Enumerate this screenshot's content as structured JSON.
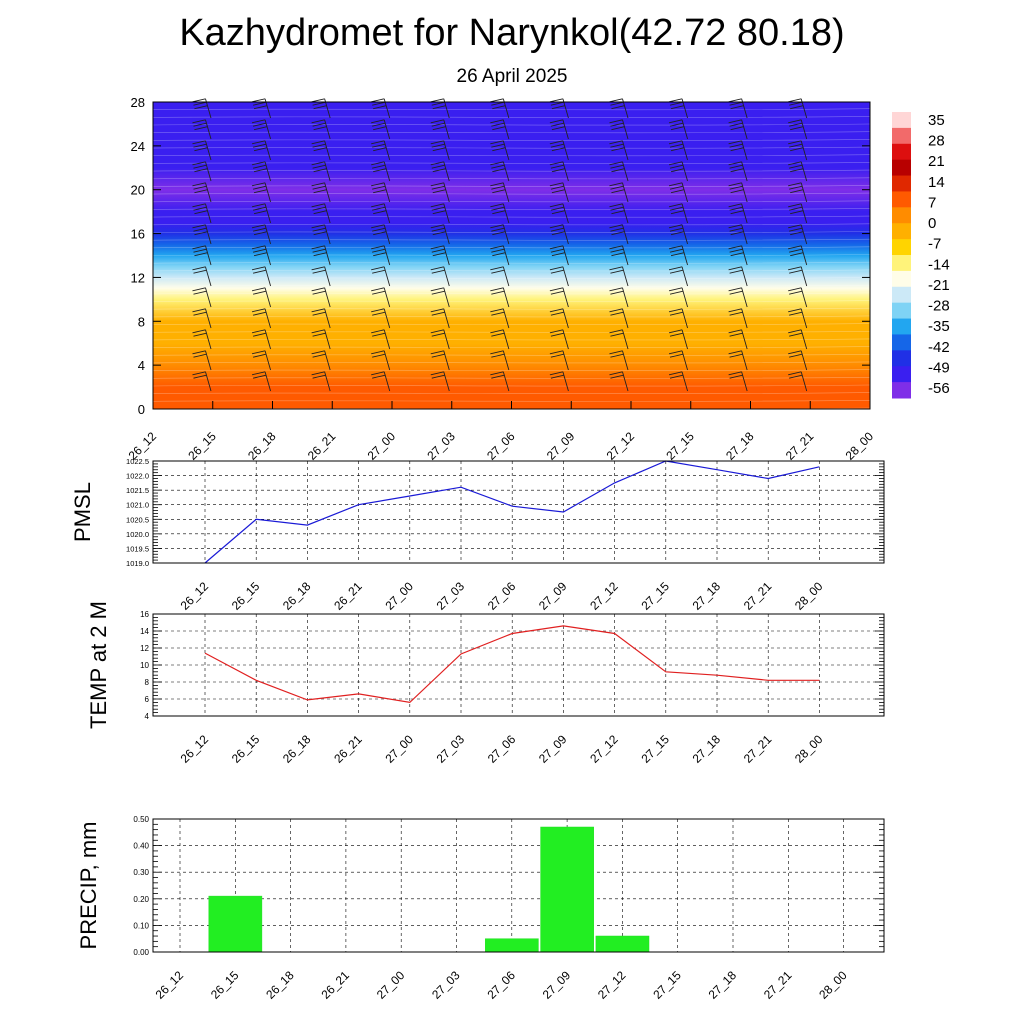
{
  "title": "Kazhydromet for Narynkol(42.72 80.18)",
  "subtitle": "26 April 2025",
  "colors": {
    "pmsl_line": "#1a1ad6",
    "temp_line": "#e02020",
    "precip_bar": "#22ee22",
    "precip_bar_edge": "#22dd22"
  },
  "chart_data": [
    {
      "type": "heatmap",
      "name_hint": "upper-air temperature cross-section",
      "x_ticks": [
        "26_12",
        "26_15",
        "26_18",
        "26_21",
        "27_00",
        "27_03",
        "27_06",
        "27_09",
        "27_12",
        "27_15",
        "27_18",
        "27_21",
        "28_00"
      ],
      "y_ticks": [
        "0",
        "4",
        "8",
        "12",
        "16",
        "20",
        "24",
        "28"
      ],
      "ylim": [
        0,
        28
      ],
      "colorbar_labels": [
        "35",
        "28",
        "21",
        "14",
        "7",
        "0",
        "-7",
        "-14",
        "-21",
        "-28",
        "-35",
        "-42",
        "-49",
        "-56"
      ],
      "color_scale": [
        "#ffd6d6",
        "#f26a6a",
        "#dd0f0f",
        "#b80000",
        "#e02800",
        "#ff5a00",
        "#ff8c00",
        "#ffb000",
        "#ffd400",
        "#fff37a",
        "#fffde8",
        "#cce9f7",
        "#7fd3f5",
        "#22a6f0",
        "#1566e8",
        "#2030e6",
        "#3a1ff0",
        "#7f2ee8"
      ],
      "level_temps": [
        {
          "h": 0,
          "t": 10
        },
        {
          "h": 2,
          "t": 6
        },
        {
          "h": 4,
          "t": 2
        },
        {
          "h": 6,
          "t": -2
        },
        {
          "h": 8,
          "t": -6
        },
        {
          "h": 10,
          "t": -13
        },
        {
          "h": 11,
          "t": -20
        },
        {
          "h": 12,
          "t": -28
        },
        {
          "h": 13,
          "t": -36
        },
        {
          "h": 14,
          "t": -42
        },
        {
          "h": 15,
          "t": -48
        },
        {
          "h": 16,
          "t": -53
        },
        {
          "h": 17,
          "t": -57
        },
        {
          "h": 18,
          "t": -60
        },
        {
          "h": 20,
          "t": -61
        },
        {
          "h": 22,
          "t": -58
        },
        {
          "h": 24,
          "t": -55
        },
        {
          "h": 28,
          "t": -55
        }
      ]
    },
    {
      "type": "line",
      "ylabel": "PMSL",
      "x": [
        "26_12",
        "26_15",
        "26_18",
        "26_21",
        "27_00",
        "27_03",
        "27_06",
        "27_09",
        "27_12",
        "27_15",
        "27_18",
        "27_21",
        "28_00"
      ],
      "values": [
        1019.0,
        1020.5,
        1020.3,
        1021.0,
        1021.3,
        1021.6,
        1020.95,
        1020.75,
        1021.75,
        1022.5,
        1022.2,
        1021.9,
        1022.3
      ],
      "ylim": [
        1019.0,
        1022.5
      ],
      "y_ticks": [
        "1019.0",
        "1019.5",
        "1020.0",
        "1020.5",
        "1021.0",
        "1021.5",
        "1022.0",
        "1022.5"
      ],
      "grid": true
    },
    {
      "type": "line",
      "ylabel": "TEMP at 2 M",
      "x": [
        "26_12",
        "26_15",
        "26_18",
        "26_21",
        "27_00",
        "27_03",
        "27_06",
        "27_09",
        "27_12",
        "27_15",
        "27_18",
        "27_21",
        "28_00"
      ],
      "values": [
        11.4,
        8.2,
        5.9,
        6.6,
        5.6,
        11.3,
        13.7,
        14.6,
        13.7,
        9.2,
        8.8,
        8.2,
        8.2
      ],
      "ylim": [
        4,
        16
      ],
      "y_ticks": [
        "4",
        "6",
        "8",
        "10",
        "12",
        "14",
        "16"
      ],
      "grid": true
    },
    {
      "type": "bar",
      "ylabel": "PRECIP, mm",
      "categories": [
        "26_12",
        "26_15",
        "26_18",
        "26_21",
        "27_00",
        "27_03",
        "27_06",
        "27_09",
        "27_12",
        "27_15",
        "27_18",
        "27_21",
        "28_00"
      ],
      "values": [
        0,
        0.21,
        0,
        0,
        0,
        0,
        0.05,
        0.47,
        0.06,
        0,
        0,
        0,
        0
      ],
      "ylim": [
        0,
        0.5
      ],
      "y_ticks": [
        "0.00",
        "0.10",
        "0.20",
        "0.30",
        "0.40",
        "0.50"
      ],
      "grid": true
    }
  ]
}
